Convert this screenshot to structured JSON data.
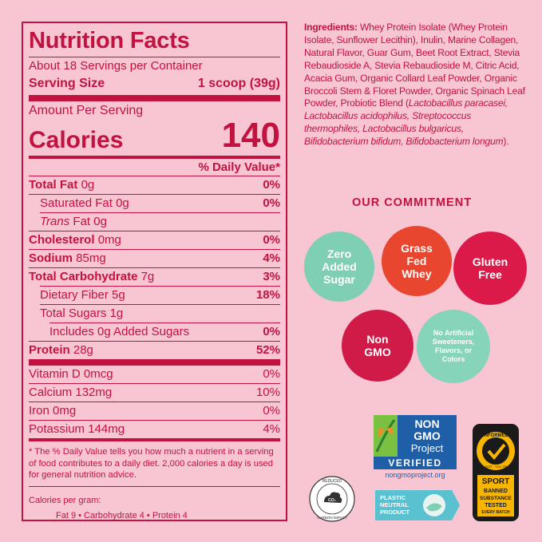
{
  "nutrition": {
    "title": "Nutrition Facts",
    "servings": "About 18 Servings per Container",
    "serving_size_label": "Serving Size",
    "serving_size_value": "1 scoop (39g)",
    "amount_per_serving": "Amount Per Serving",
    "calories_label": "Calories",
    "calories_value": "140",
    "daily_value_header": "% Daily Value*",
    "rows": [
      {
        "label": "Total Fat",
        "amount": "0g",
        "dv": "0%"
      },
      {
        "label": "Saturated Fat",
        "amount": "0g",
        "dv": "0%"
      },
      {
        "label": "Trans",
        "amount": "Fat 0g",
        "dv": ""
      },
      {
        "label": "Cholesterol",
        "amount": "0mg",
        "dv": "0%"
      },
      {
        "label": "Sodium",
        "amount": "85mg",
        "dv": "4%"
      },
      {
        "label": "Total Carbohydrate",
        "amount": "7g",
        "dv": "3%"
      },
      {
        "label": "Dietary Fiber",
        "amount": "5g",
        "dv": "18%"
      },
      {
        "label": "Total Sugars",
        "amount": "1g",
        "dv": ""
      },
      {
        "label": "Includes 0g Added Sugars",
        "amount": "",
        "dv": "0%"
      },
      {
        "label": "Protein",
        "amount": "28g",
        "dv": "52%"
      }
    ],
    "vitamins": [
      {
        "label": "Vitamin D",
        "amount": "0mcg",
        "dv": "0%"
      },
      {
        "label": "Calcium",
        "amount": "132mg",
        "dv": "10%"
      },
      {
        "label": "Iron",
        "amount": "0mg",
        "dv": "0%"
      },
      {
        "label": "Potassium",
        "amount": "144mg",
        "dv": "4%"
      }
    ],
    "footnote": "* The % Daily Value tells you how much a nutrient in a serving of food contributes to a daily diet. 2,000 calories a day is used for general nutrition advice.",
    "calories_per_gram_label": "Calories per gram:",
    "calories_per_gram_values": "Fat 9  •  Carbohydrate 4  •  Protein 4"
  },
  "ingredients": {
    "label": "Ingredients:",
    "text_1": " Whey Protein Isolate (Whey Protein Isolate, Sunflower Lecithin), Inulin, Marine Collagen, Natural Flavor, Guar Gum, Beet Root Extract, Stevia Rebaudioside A, Stevia Rebaudioside M, Citric Acid, Acacia Gum, Organic Collard Leaf Powder, Organic Broccoli Stem & Floret Powder, Organic Spinach Leaf Powder, Probiotic Blend (",
    "italic_1": "Lactobacillus paracasei, Lactobacillus acidophilus, Streptococcus thermophiles, Lactobacillus bulgaricus, Bifidobacterium bifidum, Bifidobacterium longum",
    "text_2": ")."
  },
  "commitment": {
    "title": "OUR COMMITMENT",
    "badges": [
      {
        "line1": "Zero",
        "line2": "Added",
        "line3": "Sugar"
      },
      {
        "line1": "Grass",
        "line2": "Fed",
        "line3": "Whey"
      },
      {
        "line1": "Gluten",
        "line2": "Free"
      },
      {
        "line1": "Non",
        "line2": "GMO"
      },
      {
        "line1": "No Artificial",
        "line2": "Sweeteners,",
        "line3": "Flavors, or",
        "line4": "Colors"
      }
    ]
  },
  "logos": {
    "nongmo_line1": "NON",
    "nongmo_line2": "GMO",
    "nongmo_line3": "Project",
    "nongmo_verified": "VERIFIED",
    "nongmo_url": "nongmoproject.org",
    "informed_top": "INFORMED",
    "informed_sub": "WE TEST · YOU TRUST",
    "informed_sport": "SPORT",
    "informed_line1": "BANNED",
    "informed_line2": "SUBSTANCE",
    "informed_line3": "TESTED",
    "informed_line4": "EVERY BATCH",
    "co2_top": "REDUCED",
    "co2_bottom": "CARBON IMPACT",
    "co2_mark": "CO₂",
    "plastic_line1": "PLASTIC",
    "plastic_line2": "NEUTRAL",
    "plastic_line3": "PRODUCT"
  },
  "colors": {
    "background": "#f8c5d3",
    "brand_red": "#c2123f",
    "mint": "#7fcfb4",
    "orange": "#e8462e",
    "red": "#db1a4a"
  }
}
